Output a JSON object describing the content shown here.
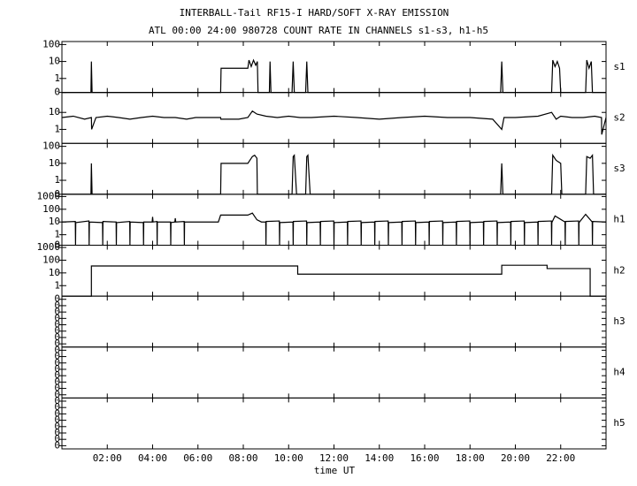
{
  "title": "INTERBALL-Tail RF15-I HARD/SOFT X-RAY EMISSION",
  "subtitle": "ATL 00:00 24:00 980728  COUNT RATE IN CHANNELS s1-s3, h1-h5",
  "xlabel": "time UT",
  "xlim": [
    0,
    24
  ],
  "xticks": [
    {
      "value": 2,
      "label": "02:00"
    },
    {
      "value": 4,
      "label": "04:00"
    },
    {
      "value": 6,
      "label": "06:00"
    },
    {
      "value": 8,
      "label": "08:00"
    },
    {
      "value": 10,
      "label": "10:00"
    },
    {
      "value": 12,
      "label": "12:00"
    },
    {
      "value": 14,
      "label": "14:00"
    },
    {
      "value": 16,
      "label": "16:00"
    },
    {
      "value": 18,
      "label": "18:00"
    },
    {
      "value": 20,
      "label": "20:00"
    },
    {
      "value": 22,
      "label": "22:00"
    }
  ],
  "chart_data": [
    {
      "type": "line",
      "name": "s1",
      "log": true,
      "color": "#000000",
      "ylim": [
        0.15,
        150
      ],
      "yticks": [
        {
          "value": 0.15,
          "label": "0"
        },
        1,
        10,
        100
      ],
      "x": [
        0,
        1.28,
        1.3,
        1.33,
        7.0,
        7.02,
        8.2,
        8.25,
        8.35,
        8.45,
        8.55,
        8.62,
        8.65,
        9.15,
        9.18,
        9.22,
        10.15,
        10.2,
        10.25,
        10.75,
        10.8,
        10.85,
        19.35,
        19.4,
        19.45,
        21.6,
        21.65,
        21.75,
        21.85,
        21.95,
        22.0,
        23.1,
        23.15,
        23.25,
        23.35,
        23.4,
        24
      ],
      "values": [
        0.15,
        0.15,
        10,
        0.15,
        0.15,
        4,
        4,
        12,
        5,
        12,
        6,
        10,
        0.15,
        0.15,
        10,
        0.15,
        0.15,
        10,
        0.15,
        0.15,
        10,
        0.15,
        0.15,
        10,
        0.15,
        0.15,
        12,
        5,
        10,
        4,
        0.15,
        0.15,
        12,
        4,
        10,
        0.15,
        0.15
      ]
    },
    {
      "type": "line",
      "name": "s2",
      "log": true,
      "color": "#000000",
      "ylim": [
        0.15,
        150
      ],
      "yticks": [
        1,
        10
      ],
      "x": [
        0,
        0.5,
        1,
        1.3,
        1.31,
        1.5,
        2,
        2.5,
        3,
        3.5,
        4,
        4.5,
        5,
        5.5,
        5.9,
        7.0,
        7.01,
        7.8,
        8.2,
        8.4,
        8.6,
        9,
        9.5,
        10,
        10.5,
        11,
        12,
        13,
        14,
        15,
        16,
        17,
        18,
        19,
        19.4,
        19.5,
        20,
        21,
        21.6,
        21.8,
        22,
        22.5,
        23,
        23.5,
        23.8,
        23.81,
        24
      ],
      "values": [
        5,
        6,
        4,
        5,
        1,
        5,
        6,
        5,
        4,
        5,
        6,
        5,
        5,
        4,
        5,
        5,
        4,
        4,
        5,
        12,
        8,
        6,
        5,
        6,
        5,
        5,
        6,
        5,
        4,
        5,
        6,
        5,
        5,
        4,
        1,
        5,
        5,
        6,
        10,
        4,
        6,
        5,
        5,
        6,
        5,
        0.5,
        5
      ]
    },
    {
      "type": "line",
      "name": "s3",
      "log": true,
      "color": "#000000",
      "ylim": [
        0.15,
        150
      ],
      "yticks": [
        {
          "value": 0.15,
          "label": "0"
        },
        1,
        10,
        100
      ],
      "x": [
        0,
        1.28,
        1.3,
        1.33,
        7.0,
        7.02,
        8.2,
        8.4,
        8.5,
        8.6,
        8.62,
        10.15,
        10.2,
        10.25,
        10.35,
        10.75,
        10.8,
        10.85,
        10.95,
        19.35,
        19.4,
        19.45,
        21.6,
        21.65,
        21.8,
        22.0,
        22.05,
        23.1,
        23.15,
        23.3,
        23.4,
        23.45,
        24
      ],
      "values": [
        0.15,
        0.15,
        10,
        0.15,
        0.15,
        10,
        10,
        25,
        30,
        20,
        0.15,
        0.15,
        25,
        30,
        0.15,
        0.15,
        25,
        30,
        0.15,
        0.15,
        10,
        0.15,
        0.15,
        30,
        15,
        10,
        0.15,
        0.15,
        25,
        20,
        30,
        0.15,
        0.15
      ]
    },
    {
      "type": "line",
      "name": "h1",
      "log": true,
      "color": "#000000",
      "ylim": [
        0.15,
        1500
      ],
      "yticks": [
        {
          "value": 0.15,
          "label": "0"
        },
        1,
        10,
        100,
        1000
      ],
      "x": [
        0,
        0.59,
        0.6,
        0.61,
        1.19,
        1.2,
        1.21,
        1.79,
        1.8,
        1.81,
        2.39,
        2.4,
        2.41,
        2.99,
        3.0,
        3.01,
        3.59,
        3.6,
        3.61,
        3.98,
        4.0,
        4.02,
        4.19,
        4.2,
        4.21,
        4.79,
        4.8,
        4.81,
        4.98,
        5.0,
        5.02,
        5.39,
        5.4,
        5.41,
        6.9,
        7.0,
        8.2,
        8.4,
        8.6,
        8.8,
        8.99,
        9.0,
        9.01,
        9.59,
        9.6,
        9.61,
        10.19,
        10.2,
        10.21,
        10.79,
        10.8,
        10.81,
        11.39,
        11.4,
        11.41,
        11.99,
        12.0,
        12.01,
        12.59,
        12.6,
        12.61,
        13.19,
        13.2,
        13.21,
        13.79,
        13.8,
        13.81,
        14.39,
        14.4,
        14.41,
        14.99,
        15.0,
        15.01,
        15.59,
        15.6,
        15.61,
        16.19,
        16.2,
        16.21,
        16.79,
        16.8,
        16.81,
        17.39,
        17.4,
        17.41,
        17.99,
        18.0,
        18.01,
        18.59,
        18.6,
        18.61,
        19.19,
        19.2,
        19.21,
        19.79,
        19.8,
        19.81,
        20.39,
        20.4,
        20.41,
        20.99,
        21.0,
        21.01,
        21.59,
        21.6,
        21.61,
        21.75,
        22.19,
        22.2,
        22.21,
        22.79,
        22.8,
        22.81,
        23.1,
        23.39,
        23.4,
        23.41,
        24
      ],
      "values": [
        10,
        11,
        0.15,
        9,
        12,
        0.15,
        10,
        9,
        0.15,
        11,
        10,
        0.15,
        9,
        11,
        0.15,
        10,
        9,
        0.15,
        10,
        10,
        25,
        10,
        11,
        0.15,
        10,
        10,
        0.15,
        9,
        10,
        20,
        10,
        11,
        0.15,
        10,
        10,
        35,
        35,
        50,
        15,
        10,
        10,
        0.15,
        11,
        12,
        0.15,
        9,
        10,
        0.15,
        11,
        12,
        0.15,
        9,
        10,
        0.15,
        11,
        12,
        0.15,
        9,
        10,
        0.15,
        11,
        12,
        0.15,
        9,
        10,
        0.15,
        11,
        12,
        0.15,
        9,
        10,
        0.15,
        11,
        12,
        0.15,
        9,
        10,
        0.15,
        11,
        12,
        0.15,
        9,
        10,
        0.15,
        11,
        12,
        0.15,
        9,
        10,
        0.15,
        11,
        12,
        0.15,
        9,
        10,
        0.15,
        11,
        12,
        0.15,
        9,
        10,
        0.15,
        11,
        12,
        0.15,
        9,
        30,
        10,
        0.15,
        11,
        12,
        0.15,
        9,
        40,
        10,
        0.15,
        11,
        10
      ]
    },
    {
      "type": "line",
      "name": "h2",
      "log": true,
      "color": "#000000",
      "ylim": [
        0.15,
        1500
      ],
      "yticks": [
        1,
        10,
        100,
        1000
      ],
      "x": [
        0,
        1.3,
        1.3,
        10.4,
        10.4,
        19.4,
        19.4,
        21.4,
        21.4,
        23.3,
        23.3,
        24
      ],
      "values": [
        0.15,
        0.15,
        35,
        35,
        8,
        8,
        40,
        40,
        22,
        22,
        0.15,
        0.15
      ]
    },
    {
      "type": "line",
      "name": "h3",
      "log": false,
      "ylim": [
        0,
        8
      ],
      "yticks": [
        {
          "value": 0.5,
          "label": "0"
        },
        {
          "value": 1.5,
          "label": "0"
        },
        {
          "value": 2.5,
          "label": "0"
        },
        {
          "value": 3.5,
          "label": "0"
        },
        {
          "value": 4.5,
          "label": "0"
        },
        {
          "value": 5.5,
          "label": "0"
        },
        {
          "value": 6.5,
          "label": "0"
        },
        {
          "value": 7.5,
          "label": "0"
        }
      ]
    },
    {
      "type": "line",
      "name": "h4",
      "log": false,
      "ylim": [
        0,
        8
      ],
      "yticks": [
        {
          "value": 0.5,
          "label": "0"
        },
        {
          "value": 1.5,
          "label": "0"
        },
        {
          "value": 2.5,
          "label": "0"
        },
        {
          "value": 3.5,
          "label": "0"
        },
        {
          "value": 4.5,
          "label": "0"
        },
        {
          "value": 5.5,
          "label": "0"
        },
        {
          "value": 6.5,
          "label": "0"
        },
        {
          "value": 7.5,
          "label": "0"
        }
      ]
    },
    {
      "type": "line",
      "name": "h5",
      "log": false,
      "ylim": [
        0,
        8
      ],
      "yticks": [
        {
          "value": 0.5,
          "label": "0"
        },
        {
          "value": 1.5,
          "label": "0"
        },
        {
          "value": 2.5,
          "label": "0"
        },
        {
          "value": 3.5,
          "label": "0"
        },
        {
          "value": 4.5,
          "label": "0"
        },
        {
          "value": 5.5,
          "label": "0"
        },
        {
          "value": 6.5,
          "label": "0"
        },
        {
          "value": 7.5,
          "label": "0"
        }
      ]
    }
  ]
}
